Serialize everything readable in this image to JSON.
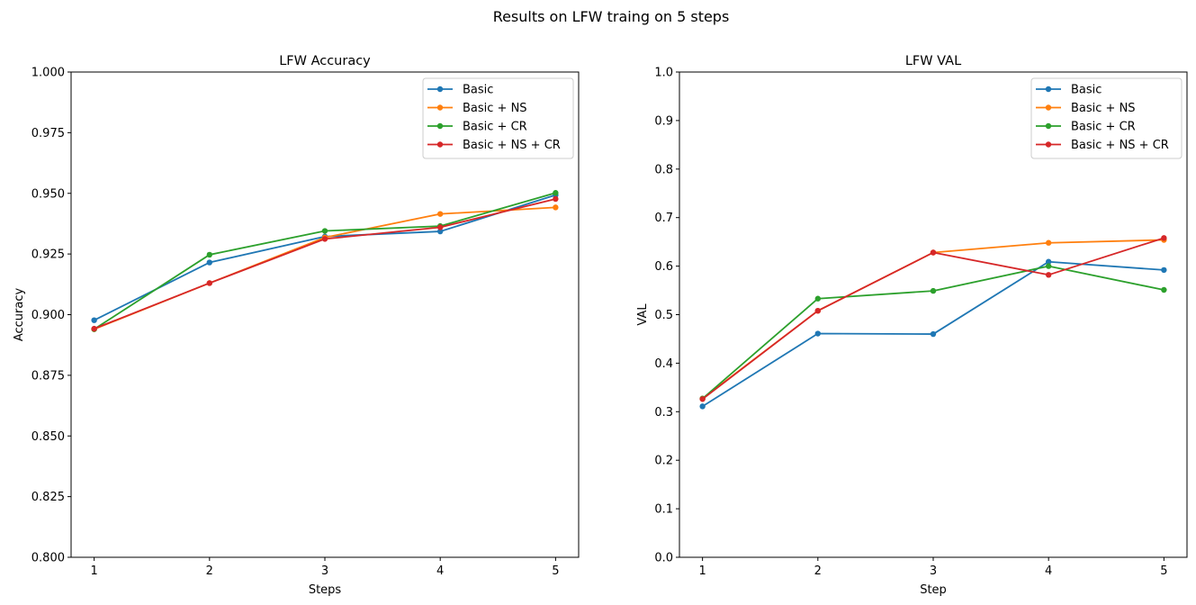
{
  "figure": {
    "suptitle": "Results on LFW traing on 5 steps"
  },
  "colors": {
    "Basic": "#1f77b4",
    "Basic + NS": "#ff7f0e",
    "Basic + CR": "#2ca02c",
    "Basic + NS + CR": "#d62728"
  },
  "chart_data": [
    {
      "type": "line",
      "title": "LFW Accuracy",
      "xlabel": "Steps",
      "ylabel": "Accuracy",
      "x": [
        1,
        2,
        3,
        4,
        5
      ],
      "xticks": [
        "1",
        "2",
        "3",
        "4",
        "5"
      ],
      "xlim": [
        0.8,
        5.2
      ],
      "ylim": [
        0.8,
        1.0
      ],
      "yticks": [
        "0.800",
        "0.825",
        "0.850",
        "0.875",
        "0.900",
        "0.925",
        "0.950",
        "0.975",
        "1.000"
      ],
      "legend_position": "top-right",
      "grid": false,
      "series": [
        {
          "name": "Basic",
          "values": [
            0.8977,
            0.9215,
            0.9322,
            0.9343,
            0.9493
          ]
        },
        {
          "name": "Basic + NS",
          "values": [
            0.894,
            0.913,
            0.9318,
            0.9415,
            0.9442
          ]
        },
        {
          "name": "Basic + CR",
          "values": [
            0.894,
            0.9247,
            0.9345,
            0.9365,
            0.9502
          ]
        },
        {
          "name": "Basic + NS + CR",
          "values": [
            0.8942,
            0.913,
            0.9312,
            0.936,
            0.9477
          ]
        }
      ]
    },
    {
      "type": "line",
      "title": "LFW VAL",
      "xlabel": "Step",
      "ylabel": "VAL",
      "x": [
        1,
        2,
        3,
        4,
        5
      ],
      "xticks": [
        "1",
        "2",
        "3",
        "4",
        "5"
      ],
      "xlim": [
        0.8,
        5.2
      ],
      "ylim": [
        0.0,
        1.0
      ],
      "yticks": [
        "0.0",
        "0.1",
        "0.2",
        "0.3",
        "0.4",
        "0.5",
        "0.6",
        "0.7",
        "0.8",
        "0.9",
        "1.0"
      ],
      "legend_position": "top-right",
      "grid": false,
      "series": [
        {
          "name": "Basic",
          "values": [
            0.311,
            0.461,
            0.46,
            0.609,
            0.592
          ]
        },
        {
          "name": "Basic + NS",
          "values": [
            0.327,
            0.508,
            0.628,
            0.648,
            0.654
          ]
        },
        {
          "name": "Basic + CR",
          "values": [
            0.327,
            0.533,
            0.549,
            0.6,
            0.551
          ]
        },
        {
          "name": "Basic + NS + CR",
          "values": [
            0.326,
            0.508,
            0.628,
            0.582,
            0.658
          ]
        }
      ]
    }
  ]
}
